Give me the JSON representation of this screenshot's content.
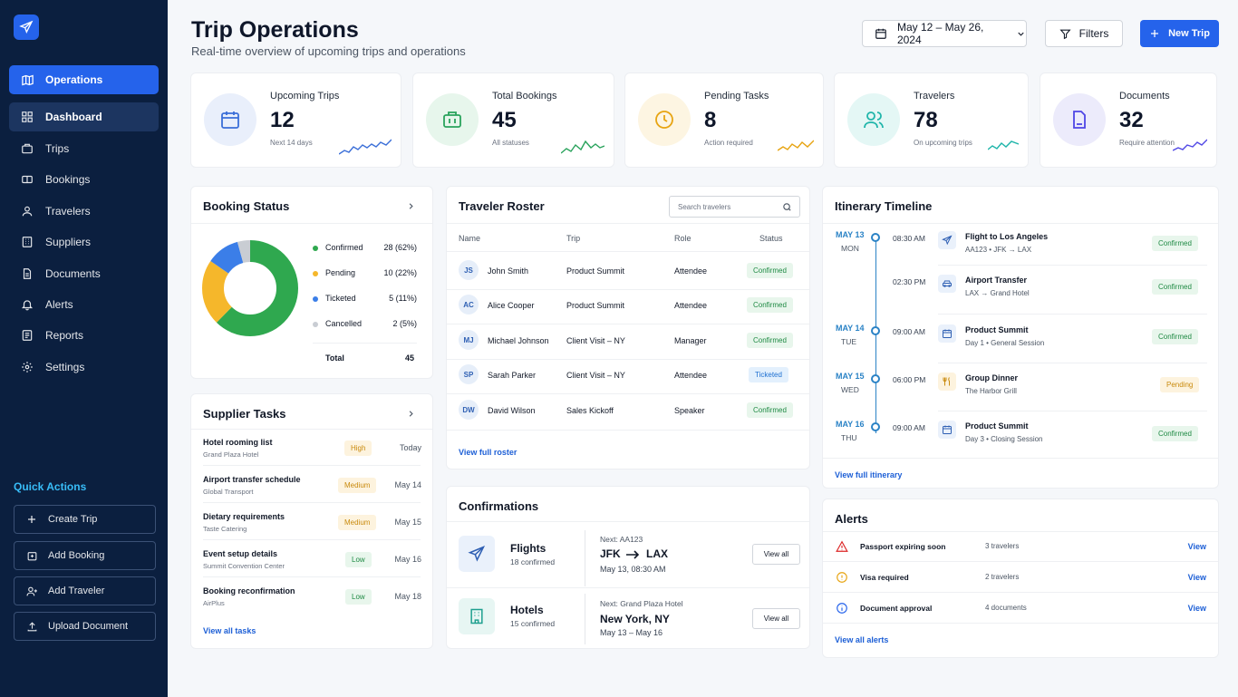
{
  "sidebar": {
    "brand_item": "Operations",
    "nav": [
      "Dashboard",
      "Trips",
      "Bookings",
      "Travelers",
      "Suppliers",
      "Documents",
      "Alerts",
      "Reports",
      "Settings"
    ],
    "quick_actions_title": "Quick Actions",
    "quick_actions": [
      "Create Trip",
      "Add Booking",
      "Add Traveler",
      "Upload Document"
    ]
  },
  "header": {
    "title": "Trip Operations",
    "subtitle": "Real-time overview of upcoming trips and operations",
    "date_range": "May 12 – May 26, 2024",
    "filters_label": "Filters",
    "new_trip_label": "New Trip"
  },
  "stats": [
    {
      "label": "Upcoming Trips",
      "value": "12",
      "sub": "Next 14 days",
      "color": "#3b6fd8"
    },
    {
      "label": "Total Bookings",
      "value": "45",
      "sub": "All statuses",
      "color": "#2aa35c"
    },
    {
      "label": "Pending Tasks",
      "value": "8",
      "sub": "Action required",
      "color": "#e7a412"
    },
    {
      "label": "Travelers",
      "value": "78",
      "sub": "On upcoming trips",
      "color": "#1fb5aa"
    },
    {
      "label": "Documents",
      "value": "32",
      "sub": "Require attention",
      "color": "#4f46e5"
    }
  ],
  "booking_status": {
    "title": "Booking Status",
    "items": [
      {
        "name": "Confirmed",
        "value": "28 (62%)",
        "count": 28,
        "color": "#2fa84f"
      },
      {
        "name": "Pending",
        "value": "10 (22%)",
        "count": 10,
        "color": "#f5b72b"
      },
      {
        "name": "Ticketed",
        "value": "5 (11%)",
        "count": 5,
        "color": "#3b7ee8"
      },
      {
        "name": "Cancelled",
        "value": "2 (5%)",
        "count": 2,
        "color": "#c9cdd3"
      }
    ],
    "total_label": "Total",
    "total_value": "45"
  },
  "supplier_tasks": {
    "title": "Supplier Tasks",
    "tasks": [
      {
        "name": "Hotel rooming list",
        "supplier": "Grand Plaza Hotel",
        "priority": "High",
        "date": "Today"
      },
      {
        "name": "Airport transfer schedule",
        "supplier": "Global Transport",
        "priority": "Medium",
        "date": "May 14"
      },
      {
        "name": "Dietary requirements",
        "supplier": "Taste Catering",
        "priority": "Medium",
        "date": "May 15"
      },
      {
        "name": "Event setup details",
        "supplier": "Summit Convention Center",
        "priority": "Low",
        "date": "May 16"
      },
      {
        "name": "Booking reconfirmation",
        "supplier": "AirPlus",
        "priority": "Low",
        "date": "May 18"
      }
    ],
    "view_all": "View all tasks"
  },
  "roster": {
    "title": "Traveler Roster",
    "search_placeholder": "Search travelers",
    "columns": [
      "Name",
      "Trip",
      "Role",
      "Status"
    ],
    "rows": [
      {
        "initials": "JS",
        "name": "John Smith",
        "trip": "Product Summit",
        "role": "Attendee",
        "status": "Confirmed"
      },
      {
        "initials": "AC",
        "name": "Alice Cooper",
        "trip": "Product Summit",
        "role": "Attendee",
        "status": "Confirmed"
      },
      {
        "initials": "MJ",
        "name": "Michael Johnson",
        "trip": "Client Visit – NY",
        "role": "Manager",
        "status": "Confirmed"
      },
      {
        "initials": "SP",
        "name": "Sarah Parker",
        "trip": "Client Visit – NY",
        "role": "Attendee",
        "status": "Ticketed"
      },
      {
        "initials": "DW",
        "name": "David Wilson",
        "trip": "Sales Kickoff",
        "role": "Speaker",
        "status": "Confirmed"
      }
    ],
    "view_full": "View full roster"
  },
  "confirmations": {
    "title": "Confirmations",
    "flights": {
      "name": "Flights",
      "count": "18 confirmed",
      "next": "Next: AA123",
      "from": "JFK",
      "to": "LAX",
      "when": "May 13, 08:30 AM",
      "btn": "View all"
    },
    "hotels": {
      "name": "Hotels",
      "count": "15 confirmed",
      "next": "Next: Grand Plaza Hotel",
      "city": "New York, NY",
      "when": "May 13 – May 16",
      "btn": "View all"
    }
  },
  "itinerary": {
    "title": "Itinerary Timeline",
    "events": [
      {
        "date": "MAY 13",
        "day": "MON",
        "time": "08:30 AM",
        "icon": "plane-icon",
        "name": "Flight to Los Angeles",
        "detail": "AA123 • JFK → LAX",
        "status": "Confirmed"
      },
      {
        "date": "",
        "day": "",
        "time": "02:30 PM",
        "icon": "car-icon",
        "name": "Airport Transfer",
        "detail": "LAX → Grand Hotel",
        "status": "Confirmed"
      },
      {
        "date": "MAY 14",
        "day": "TUE",
        "time": "09:00 AM",
        "icon": "calendar-icon",
        "name": "Product Summit",
        "detail": "Day 1 • General Session",
        "status": "Confirmed"
      },
      {
        "date": "MAY 15",
        "day": "WED",
        "time": "06:00 PM",
        "icon": "utensils-icon",
        "name": "Group Dinner",
        "detail": "The Harbor Grill",
        "status": "Pending"
      },
      {
        "date": "MAY 16",
        "day": "THU",
        "time": "09:00 AM",
        "icon": "calendar-icon",
        "name": "Product Summit",
        "detail": "Day 3 • Closing Session",
        "status": "Confirmed"
      }
    ],
    "view_full": "View full itinerary"
  },
  "alerts": {
    "title": "Alerts",
    "items": [
      {
        "name": "Passport expiring soon",
        "count": "3 travelers",
        "view": "View",
        "color": "#dc2626"
      },
      {
        "name": "Visa required",
        "count": "2 travelers",
        "view": "View",
        "color": "#e7a412"
      },
      {
        "name": "Document approval",
        "count": "4 documents",
        "view": "View",
        "color": "#2563eb"
      }
    ],
    "view_all": "View all alerts"
  }
}
